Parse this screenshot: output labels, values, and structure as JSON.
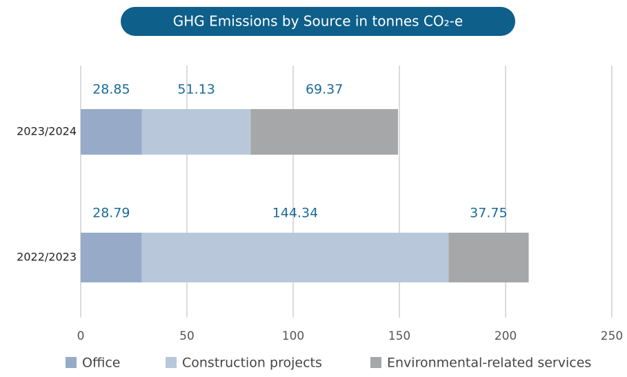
{
  "chart_data": {
    "type": "stacked_barh",
    "title": "GHG Emissions by Source in tonnes CO₂-e",
    "categories": [
      "2023/2024",
      "2022/2023"
    ],
    "series": [
      {
        "name": "Office",
        "color": "#97abc9",
        "values": [
          28.85,
          28.79
        ]
      },
      {
        "name": "Construction projects",
        "color": "#b8c8da",
        "values": [
          51.13,
          144.34
        ]
      },
      {
        "name": "Environmental-related services",
        "color": "#a6a7a9",
        "values": [
          69.37,
          37.75
        ]
      }
    ],
    "xlim": [
      0,
      250
    ],
    "xticks": [
      0,
      50,
      100,
      150,
      200,
      250
    ],
    "grid": true
  }
}
